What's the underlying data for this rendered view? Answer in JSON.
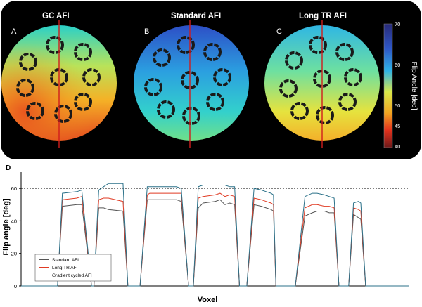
{
  "figure": {
    "panels": [
      {
        "letter": "A",
        "title": "GC AFI"
      },
      {
        "letter": "B",
        "title": "Standard AFI"
      },
      {
        "letter": "C",
        "title": "Long TR AFI"
      }
    ],
    "colorbar": {
      "label": "Flip Angle [deg]",
      "min": 40,
      "max": 70,
      "ticks": [
        "70",
        "60",
        "50",
        "45",
        "40"
      ]
    },
    "profile_line_color": "#d01c1c",
    "panel_d_letter": "D"
  },
  "chart_data": {
    "type": "line",
    "xlabel": "Voxel",
    "ylabel": "Flip angle [deg]",
    "ylim": [
      0,
      70
    ],
    "yticks": [
      0,
      20,
      40,
      60
    ],
    "reference_line": {
      "y": 60,
      "style": "dashed"
    },
    "x": [
      0,
      13,
      15,
      17,
      23,
      25,
      29,
      30,
      32,
      34,
      36,
      42,
      44,
      49,
      52,
      53,
      54,
      55,
      64,
      66,
      69,
      71,
      73,
      75,
      80,
      82,
      84,
      86,
      88,
      90,
      93,
      96,
      99,
      101,
      103,
      104,
      105,
      113,
      117,
      120,
      122,
      125,
      127,
      129,
      131,
      135,
      137,
      139,
      140,
      142,
      144,
      149,
      150,
      151,
      152,
      154,
      156,
      157,
      159,
      160
    ],
    "series": [
      {
        "name": "Standard AFI",
        "color": "#555555",
        "values": [
          0,
          0,
          0,
          49,
          50,
          50,
          0,
          0,
          48,
          48,
          47,
          46,
          0,
          0,
          53,
          53,
          53,
          53,
          53,
          52,
          0,
          0,
          48,
          51,
          52,
          53,
          50,
          51,
          50,
          0,
          0,
          50,
          49,
          48,
          47,
          46,
          0,
          0,
          43,
          45,
          46,
          46,
          45,
          45,
          0,
          0,
          44,
          42,
          41,
          0,
          0,
          0,
          0,
          0,
          0,
          0,
          0,
          0,
          0,
          0
        ]
      },
      {
        "name": "Long TR AFI",
        "color": "#e03b24",
        "values": [
          0,
          0,
          0,
          53,
          54,
          55,
          0,
          0,
          53,
          54,
          54,
          52,
          0,
          0,
          56,
          57,
          57,
          57,
          57,
          57,
          0,
          0,
          54,
          55,
          56,
          57,
          55,
          56,
          55,
          0,
          0,
          54,
          53,
          52,
          51,
          50,
          0,
          0,
          48,
          50,
          50,
          49,
          49,
          48,
          0,
          0,
          48,
          47,
          46,
          0,
          0,
          0,
          0,
          0,
          0,
          0,
          0,
          0,
          0,
          0
        ]
      },
      {
        "name": "Gradient cycled AFI",
        "color": "#2b7189",
        "values": [
          0,
          0,
          0,
          57,
          58,
          59,
          0,
          0,
          59,
          61,
          63,
          63,
          0,
          0,
          61,
          61,
          61,
          61,
          61,
          60,
          0,
          0,
          61,
          62,
          62,
          62,
          62,
          61,
          61,
          0,
          0,
          60,
          59,
          58,
          57,
          56,
          0,
          0,
          55,
          57,
          57,
          56,
          55,
          54,
          0,
          0,
          51,
          52,
          51,
          0,
          0,
          0,
          0,
          0,
          0,
          0,
          0,
          0,
          0,
          0
        ]
      }
    ],
    "legend": "bottom-left"
  }
}
